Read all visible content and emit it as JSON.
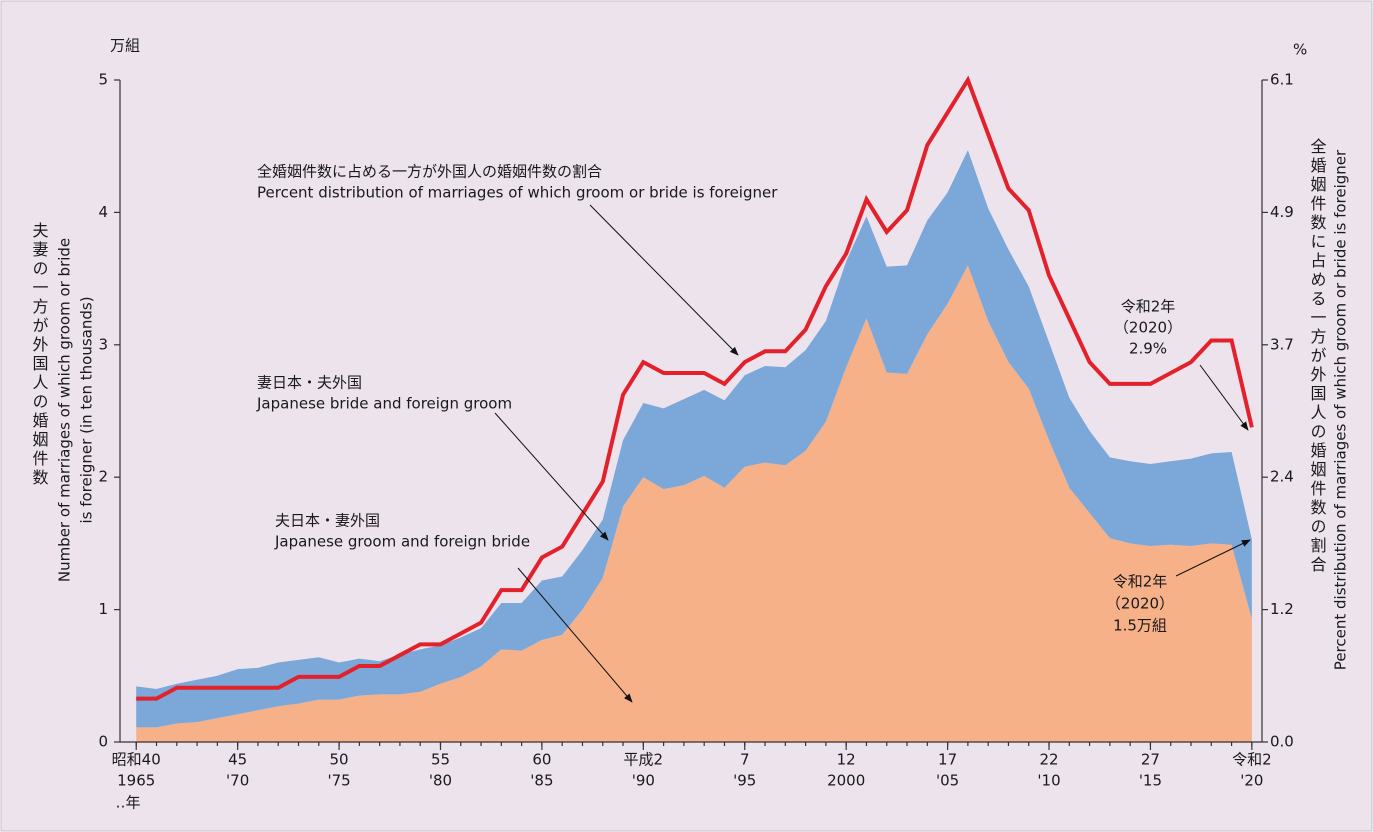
{
  "chart_data": {
    "type": "area",
    "stacked": true,
    "y_unit": "万組",
    "y2_unit": "%",
    "x_unit": "‥年",
    "y_label_ja": "夫妻の一方が外国人の婚姻件数",
    "y_label_en": [
      "Number of marriages of which groom or bride",
      "is foreigner (in ten thousands)"
    ],
    "y2_label_ja": "全婚姻件数に占める一方が外国人の婚姻件数の割合",
    "y2_label_en": "Percent distribution of marriages of which groom or bride is foreigner",
    "x": [
      1965,
      1966,
      1967,
      1968,
      1969,
      1970,
      1971,
      1972,
      1973,
      1974,
      1975,
      1976,
      1977,
      1978,
      1979,
      1980,
      1981,
      1982,
      1983,
      1984,
      1985,
      1986,
      1987,
      1988,
      1989,
      1990,
      1991,
      1992,
      1993,
      1994,
      1995,
      1996,
      1997,
      1998,
      1999,
      2000,
      2001,
      2002,
      2003,
      2004,
      2005,
      2006,
      2007,
      2008,
      2009,
      2010,
      2011,
      2012,
      2013,
      2014,
      2015,
      2016,
      2017,
      2018,
      2019,
      2020
    ],
    "xlim": [
      1964.2,
      2020.5
    ],
    "xticks": [
      {
        "value": 1965,
        "label": [
          "昭和40",
          "1965"
        ]
      },
      {
        "value": 1970,
        "label": [
          "45",
          "'70"
        ]
      },
      {
        "value": 1975,
        "label": [
          "50",
          "'75"
        ]
      },
      {
        "value": 1980,
        "label": [
          "55",
          "'80"
        ]
      },
      {
        "value": 1985,
        "label": [
          "60",
          "'85"
        ]
      },
      {
        "value": 1990,
        "label": [
          "平成2",
          "'90"
        ]
      },
      {
        "value": 1995,
        "label": [
          "7",
          "'95"
        ]
      },
      {
        "value": 2000,
        "label": [
          "12",
          "2000"
        ]
      },
      {
        "value": 2005,
        "label": [
          "17",
          "'05"
        ]
      },
      {
        "value": 2010,
        "label": [
          "22",
          "'10"
        ]
      },
      {
        "value": 2015,
        "label": [
          "27",
          "'15"
        ]
      },
      {
        "value": 2020,
        "label": [
          "令和2",
          "'20"
        ]
      }
    ],
    "ylim": [
      0,
      5
    ],
    "yticks": [
      0,
      1,
      2,
      3,
      4,
      5
    ],
    "y2lim": [
      0,
      6.1
    ],
    "y2ticks": [
      {
        "value": 0,
        "label": "0.0"
      },
      {
        "value": 1.22,
        "label": "1.2"
      },
      {
        "value": 2.44,
        "label": "2.4"
      },
      {
        "value": 3.66,
        "label": "3.7"
      },
      {
        "value": 4.88,
        "label": "4.9"
      },
      {
        "value": 6.1,
        "label": "6.1"
      }
    ],
    "series": [
      {
        "name": "夫日本・妻外国 Japanese groom and foreign bride",
        "color": "#f6b189",
        "values": [
          0.11,
          0.11,
          0.14,
          0.15,
          0.18,
          0.21,
          0.24,
          0.27,
          0.29,
          0.32,
          0.32,
          0.35,
          0.36,
          0.36,
          0.38,
          0.44,
          0.49,
          0.57,
          0.7,
          0.69,
          0.77,
          0.81,
          1.0,
          1.24,
          1.78,
          2.0,
          1.91,
          1.94,
          2.01,
          1.92,
          2.08,
          2.11,
          2.09,
          2.2,
          2.42,
          2.83,
          3.2,
          2.79,
          2.78,
          3.08,
          3.31,
          3.6,
          3.18,
          2.87,
          2.67,
          2.28,
          1.92,
          1.73,
          1.54,
          1.5,
          1.48,
          1.49,
          1.48,
          1.5,
          1.49,
          0.93
        ]
      },
      {
        "name": "妻日本・夫外国 Japanese bride and foreign groom",
        "color": "#7ba7d9",
        "values": [
          0.31,
          0.29,
          0.3,
          0.32,
          0.32,
          0.34,
          0.32,
          0.33,
          0.33,
          0.32,
          0.28,
          0.28,
          0.25,
          0.3,
          0.32,
          0.29,
          0.3,
          0.29,
          0.35,
          0.36,
          0.45,
          0.44,
          0.45,
          0.44,
          0.5,
          0.56,
          0.61,
          0.65,
          0.65,
          0.66,
          0.69,
          0.73,
          0.74,
          0.76,
          0.76,
          0.8,
          0.77,
          0.8,
          0.82,
          0.86,
          0.84,
          0.87,
          0.85,
          0.85,
          0.77,
          0.74,
          0.68,
          0.62,
          0.61,
          0.62,
          0.62,
          0.63,
          0.66,
          0.68,
          0.7,
          0.6
        ]
      },
      {
        "name": "全婚姻件数に占める一方が外国人の婚姻件数の割合",
        "color": "#e3212b",
        "type": "line",
        "axis": "y2",
        "values": [
          0.4,
          0.4,
          0.5,
          0.5,
          0.5,
          0.5,
          0.5,
          0.5,
          0.6,
          0.6,
          0.6,
          0.7,
          0.7,
          0.8,
          0.9,
          0.9,
          1.0,
          1.1,
          1.4,
          1.4,
          1.7,
          1.8,
          2.1,
          2.4,
          3.2,
          3.5,
          3.4,
          3.4,
          3.4,
          3.3,
          3.5,
          3.6,
          3.6,
          3.8,
          4.2,
          4.5,
          5.0,
          4.7,
          4.9,
          5.5,
          5.8,
          6.1,
          5.6,
          5.1,
          4.9,
          4.3,
          3.9,
          3.5,
          3.3,
          3.3,
          3.3,
          3.4,
          3.5,
          3.7,
          3.7,
          2.9
        ]
      }
    ],
    "annotations": [
      {
        "lines": [
          "全婚姻件数に占める一方が外国人の婚姻件数の割合",
          "Percent distribution of marriages of which groom or bride is foreigner"
        ]
      },
      {
        "lines": [
          "妻日本・夫外国",
          "Japanese bride and foreign groom"
        ]
      },
      {
        "lines": [
          "夫日本・妻外国",
          "Japanese groom and foreign bride"
        ]
      },
      {
        "lines": [
          "令和2年",
          "（2020）",
          "2.9%"
        ]
      },
      {
        "lines": [
          "令和2年",
          "（2020）",
          "1.5万組"
        ]
      }
    ]
  }
}
